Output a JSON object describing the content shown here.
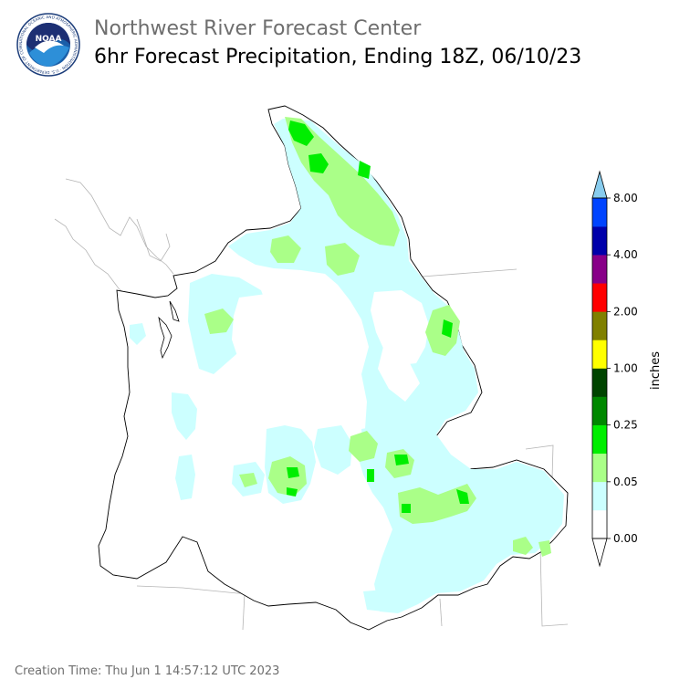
{
  "header": {
    "org_title": "Northwest River Forecast Center",
    "product_title": "6hr Forecast Precipitation, Ending 18Z, 06/10/23",
    "logo_text": "NOAA",
    "logo_ring_text": "NATIONAL OCEANIC AND ATMOSPHERIC ADMINISTRATION · U.S. DEPARTMENT OF COMMERCE"
  },
  "legend": {
    "unit_label": "inches",
    "tick_labels": [
      "0.00",
      "0.05",
      "0.25",
      "1.00",
      "2.00",
      "4.00",
      "8.00"
    ],
    "bins": [
      {
        "color": "#ffffff"
      },
      {
        "color": "#ccffff"
      },
      {
        "color": "#aaff88"
      },
      {
        "color": "#00ee00"
      },
      {
        "color": "#008800"
      },
      {
        "color": "#004400"
      },
      {
        "color": "#ffff00"
      },
      {
        "color": "#808000"
      },
      {
        "color": "#ff0000"
      },
      {
        "color": "#880088"
      },
      {
        "color": "#0000aa"
      },
      {
        "color": "#0044ff"
      }
    ],
    "over_color": "#88ccee"
  },
  "footer": {
    "creation_label": "Creation Time:",
    "creation_value": "Thu Jun 1 14:57:12 UTC 2023"
  }
}
